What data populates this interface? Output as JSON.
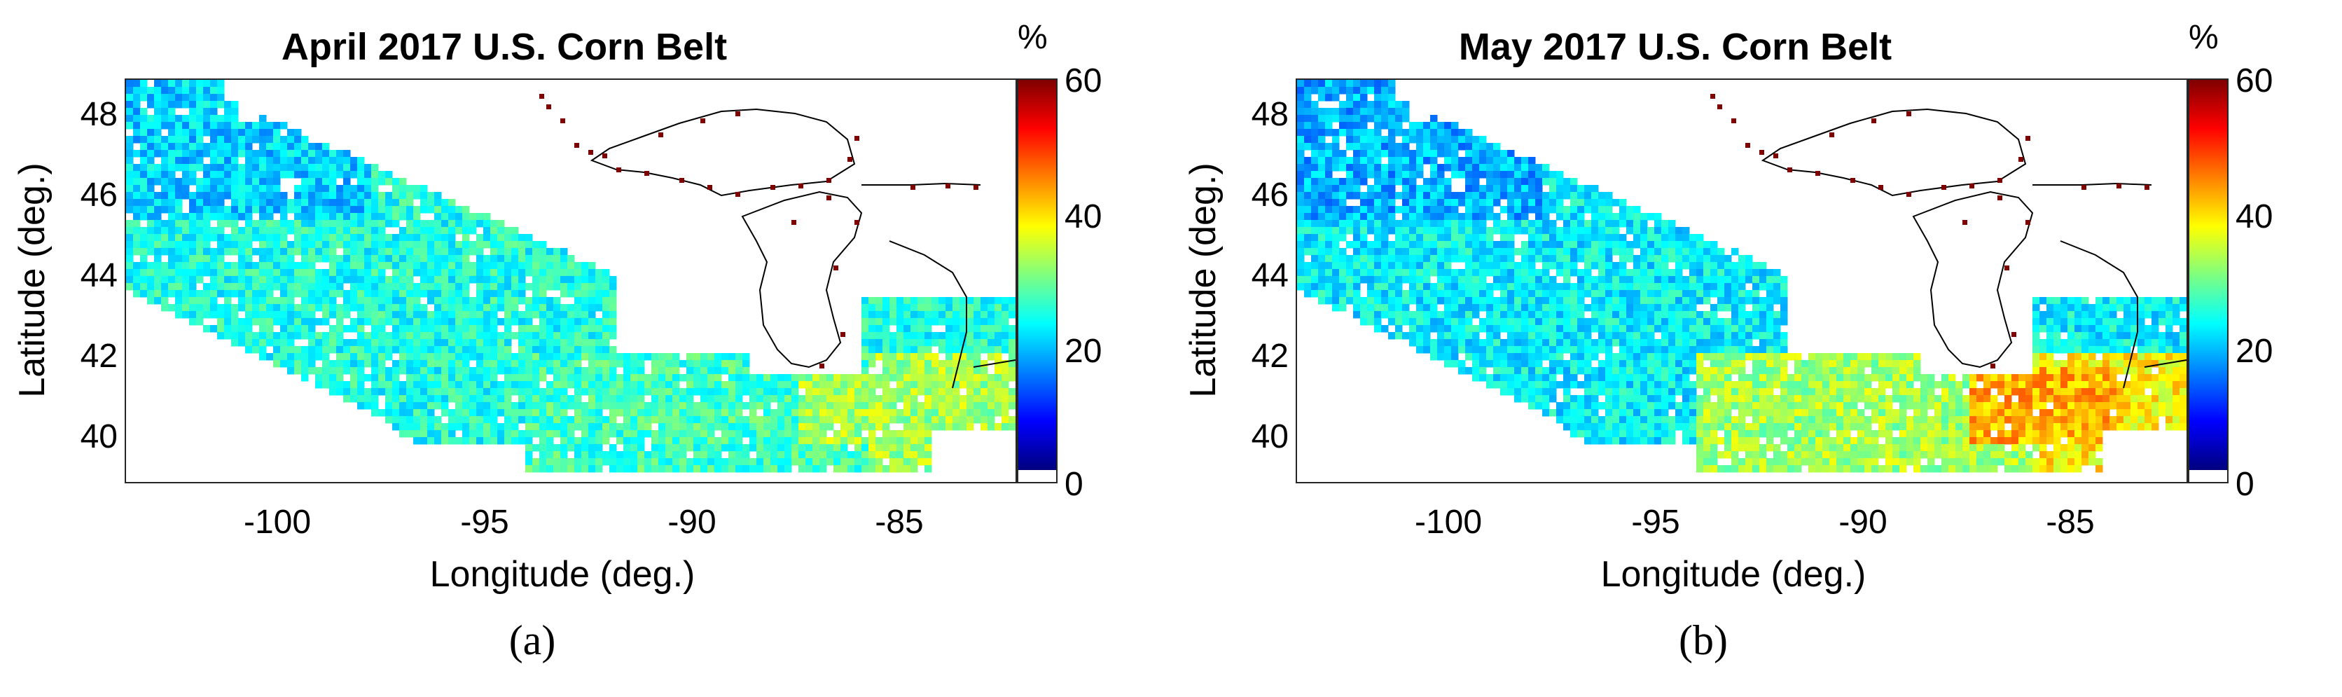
{
  "panels": [
    {
      "title": "April 2017 U.S. Corn Belt",
      "caption": "(a)",
      "y_ticks": [
        "48",
        "46",
        "44",
        "42",
        "40"
      ],
      "x_ticks": [
        "-100",
        "-95",
        "-90",
        "-85"
      ],
      "xlabel": "Longitude (deg.)",
      "ylabel": "Latitude (deg.)",
      "colorbar": {
        "unit": "%",
        "ticks": [
          "60",
          "40",
          "20",
          "0"
        ]
      }
    },
    {
      "title": "May 2017 U.S. Corn Belt",
      "caption": "(b)",
      "y_ticks": [
        "48",
        "46",
        "44",
        "42",
        "40"
      ],
      "x_ticks": [
        "-100",
        "-95",
        "-90",
        "-85"
      ],
      "xlabel": "Longitude (deg.)",
      "ylabel": "Latitude (deg.)",
      "colorbar": {
        "unit": "%",
        "ticks": [
          "60",
          "40",
          "20",
          "0"
        ]
      }
    }
  ],
  "map_extent": {
    "lon": [
      -104,
      -82.5
    ],
    "lat": [
      39,
      49
    ]
  },
  "colorbar_range": [
    0,
    60
  ],
  "colormap": [
    "#00007f",
    "#0000ff",
    "#007fff",
    "#00ffff",
    "#7fff7f",
    "#ffff00",
    "#ff7f00",
    "#ff0000",
    "#7f0000"
  ],
  "colorbar_zero_color": "#ffffff",
  "coastline_color": "#000000",
  "approx_soil_moisture_percent": {
    "april_typical": 24,
    "april_southeast_typical": 32,
    "may_typical": 22,
    "may_southeast_typical": 38
  }
}
